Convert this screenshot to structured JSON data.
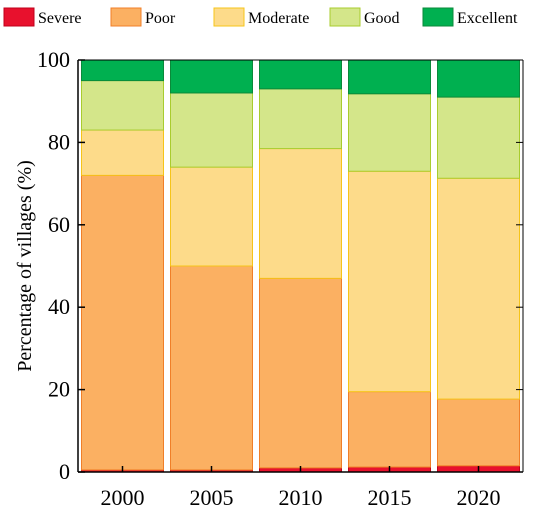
{
  "chart_data": {
    "type": "bar",
    "stacked": true,
    "categories": [
      "2000",
      "2005",
      "2010",
      "2015",
      "2020"
    ],
    "series": [
      {
        "name": "Severe",
        "color": "#e8112d",
        "stroke": "#c0001a",
        "values": [
          0.5,
          0.5,
          1.0,
          1.2,
          1.5
        ]
      },
      {
        "name": "Poor",
        "color": "#fbb062",
        "stroke": "#f07f28",
        "values": [
          71.5,
          49.5,
          46.0,
          18.3,
          16.2
        ]
      },
      {
        "name": "Moderate",
        "color": "#fddb8a",
        "stroke": "#f6c419",
        "values": [
          11.0,
          24.0,
          31.5,
          53.5,
          53.6
        ]
      },
      {
        "name": "Good",
        "color": "#d4e68a",
        "stroke": "#a9cc2e",
        "values": [
          12.0,
          18.0,
          14.5,
          18.8,
          19.7
        ]
      },
      {
        "name": "Excellent",
        "color": "#00b050",
        "stroke": "#0a8a3a",
        "values": [
          5.0,
          8.0,
          7.0,
          8.2,
          9.0
        ]
      }
    ],
    "ylabel": "Percentage of villages (%)",
    "xlabel": "",
    "ylim": [
      0,
      100
    ],
    "yticks": [
      0,
      20,
      40,
      60,
      80,
      100
    ],
    "grid": false,
    "legend_position": "top"
  }
}
